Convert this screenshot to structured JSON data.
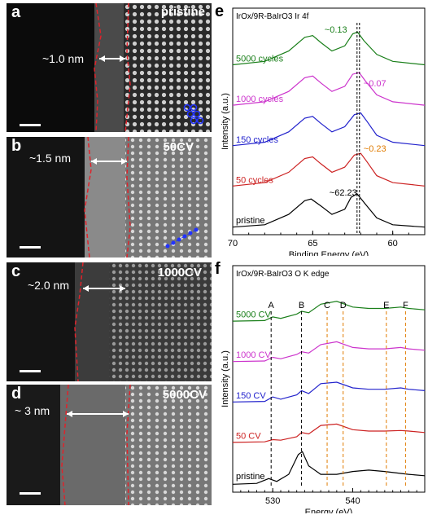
{
  "panels": {
    "a": {
      "letter": "a",
      "condition": "pristine",
      "thickness": "~1.0 nm"
    },
    "b": {
      "letter": "b",
      "condition": "50CV",
      "thickness": "~1.5 nm"
    },
    "c": {
      "letter": "c",
      "condition": "1000CV",
      "thickness": "~2.0 nm"
    },
    "d": {
      "letter": "d",
      "condition": "5000CV",
      "thickness": "~ 3 nm"
    }
  },
  "chart_data": [
    {
      "panel": "e",
      "type": "line",
      "title": "IrOx/9R-BaIrO3 Ir 4f",
      "xlabel": "Binding Energy (eV)",
      "ylabel": "Intensity (a.u.)",
      "xlim": [
        70,
        58
      ],
      "xticks": [
        70,
        65,
        60
      ],
      "series": [
        {
          "name": "5000 cycles",
          "color": "#1a7f1a",
          "offset": 4,
          "x": [
            70,
            68,
            66.5,
            65.5,
            65,
            64.5,
            63.8,
            63,
            62.5,
            62.2,
            61.8,
            61,
            60,
            58
          ],
          "y": [
            0.05,
            0.15,
            0.45,
            0.85,
            0.9,
            0.7,
            0.45,
            0.6,
            0.95,
            1.0,
            0.75,
            0.35,
            0.15,
            0.05
          ]
        },
        {
          "name": "1000 cycles",
          "color": "#cc33cc",
          "offset": 3,
          "x": [
            70,
            68,
            66.5,
            65.5,
            65,
            64.5,
            63.8,
            63,
            62.5,
            62.1,
            61.7,
            61,
            60,
            58
          ],
          "y": [
            0.05,
            0.15,
            0.45,
            0.85,
            0.9,
            0.7,
            0.45,
            0.6,
            0.95,
            1.0,
            0.75,
            0.35,
            0.15,
            0.05
          ]
        },
        {
          "name": "150 cycles",
          "color": "#2222cc",
          "offset": 2,
          "x": [
            70,
            68,
            66.5,
            65.5,
            65,
            64.5,
            63.8,
            63,
            62.4,
            62.0,
            61.6,
            61,
            60,
            58
          ],
          "y": [
            0.05,
            0.15,
            0.45,
            0.85,
            0.9,
            0.7,
            0.45,
            0.6,
            0.95,
            1.0,
            0.75,
            0.35,
            0.15,
            0.05
          ]
        },
        {
          "name": "50 cycles",
          "color": "#cc2222",
          "offset": 1,
          "x": [
            70,
            68,
            66.5,
            65.5,
            65,
            64.5,
            63.8,
            63,
            62.4,
            62.0,
            61.6,
            61,
            60,
            58
          ],
          "y": [
            0.05,
            0.15,
            0.45,
            0.85,
            0.9,
            0.7,
            0.45,
            0.6,
            0.95,
            1.0,
            0.75,
            0.35,
            0.15,
            0.05
          ]
        },
        {
          "name": "pristine",
          "color": "#000000",
          "offset": 0,
          "x": [
            70,
            68,
            66.5,
            65.5,
            65.1,
            64.5,
            63.8,
            63,
            62.6,
            62.23,
            61.8,
            61,
            60,
            58
          ],
          "y": [
            0.03,
            0.1,
            0.4,
            0.8,
            0.85,
            0.65,
            0.4,
            0.55,
            0.9,
            1.0,
            0.75,
            0.3,
            0.1,
            0.03
          ]
        }
      ],
      "annotations": [
        {
          "text": "~0.13",
          "color": "#1a7f1a"
        },
        {
          "text": "~0.07",
          "color": "#cc33cc"
        },
        {
          "text": "~0.23",
          "color": "#e07b00"
        },
        {
          "text": "~62.23",
          "color": "#000000"
        }
      ]
    },
    {
      "panel": "f",
      "type": "line",
      "title": "IrOx/9R-BaIrO3 O K edge",
      "xlabel": "Energy (eV)",
      "ylabel": "Intensity (a.u.)",
      "xlim": [
        525,
        549
      ],
      "xticks": [
        530,
        540
      ],
      "peaks": [
        "A",
        "B",
        "C",
        "D",
        "E",
        "F"
      ],
      "series": [
        {
          "name": "5000 CV",
          "color": "#1a7f1a",
          "offset": 4,
          "x": [
            525,
            529,
            530,
            531,
            533,
            533.6,
            534.5,
            536,
            538,
            540,
            542,
            544,
            546,
            547,
            549
          ],
          "y": [
            0.1,
            0.12,
            0.25,
            0.2,
            0.35,
            0.45,
            0.4,
            0.7,
            0.8,
            0.6,
            0.55,
            0.55,
            0.6,
            0.55,
            0.5
          ]
        },
        {
          "name": "1000 CV",
          "color": "#cc33cc",
          "offset": 3,
          "x": [
            525,
            529,
            530,
            531,
            533,
            533.6,
            534.5,
            536,
            538,
            540,
            542,
            544,
            546,
            547,
            549
          ],
          "y": [
            0.1,
            0.12,
            0.25,
            0.2,
            0.35,
            0.45,
            0.4,
            0.7,
            0.8,
            0.6,
            0.55,
            0.55,
            0.6,
            0.55,
            0.5
          ]
        },
        {
          "name": "150 CV",
          "color": "#2222cc",
          "offset": 2,
          "x": [
            525,
            529,
            530,
            531,
            533,
            533.6,
            534.5,
            536,
            538,
            540,
            542,
            544,
            546,
            547,
            549
          ],
          "y": [
            0.1,
            0.12,
            0.28,
            0.2,
            0.35,
            0.5,
            0.4,
            0.75,
            0.8,
            0.6,
            0.55,
            0.55,
            0.6,
            0.55,
            0.5
          ]
        },
        {
          "name": "50 CV",
          "color": "#cc2222",
          "offset": 1,
          "x": [
            525,
            529,
            530,
            531,
            533,
            533.6,
            534.5,
            536,
            538,
            540,
            542,
            544,
            546,
            547,
            549
          ],
          "y": [
            0.1,
            0.12,
            0.2,
            0.18,
            0.3,
            0.45,
            0.4,
            0.7,
            0.75,
            0.55,
            0.5,
            0.5,
            0.52,
            0.5,
            0.45
          ]
        },
        {
          "name": "pristine",
          "color": "#000000",
          "offset": 0,
          "x": [
            525,
            528,
            529.5,
            530.5,
            532,
            533.2,
            533.7,
            534.5,
            536,
            538,
            540,
            542,
            544,
            547,
            549
          ],
          "y": [
            0.05,
            0.08,
            0.25,
            0.15,
            0.4,
            1.1,
            1.2,
            0.7,
            0.4,
            0.4,
            0.5,
            0.55,
            0.5,
            0.4,
            0.35
          ]
        }
      ]
    }
  ]
}
